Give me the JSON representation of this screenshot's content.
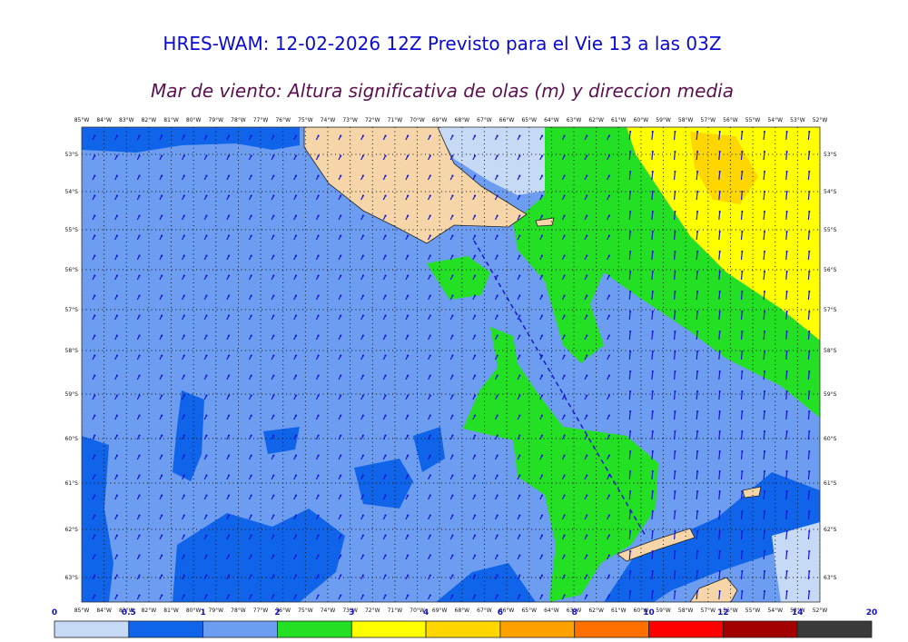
{
  "header": {
    "title": "HRES-WAM: 12-02-2026 12Z Previsto para el Vie 13 a las 03Z",
    "subtitle": "Mar de viento: Altura significativa de olas (m) y direccion media"
  },
  "map": {
    "longitudes": [
      "85°W",
      "84°W",
      "83°W",
      "82°W",
      "81°W",
      "80°W",
      "79°W",
      "78°W",
      "77°W",
      "76°W",
      "75°W",
      "74°W",
      "73°W",
      "72°W",
      "71°W",
      "70°W",
      "69°W",
      "68°W",
      "67°W",
      "66°W",
      "65°W",
      "64°W",
      "63°W",
      "62°W",
      "61°W",
      "60°W",
      "59°W",
      "58°W",
      "57°W",
      "56°W",
      "55°W",
      "54°W",
      "53°W",
      "52°W"
    ],
    "latitudes": [
      "53°S",
      "54°S",
      "55°S",
      "56°S",
      "57°S",
      "58°S",
      "59°S",
      "60°S",
      "61°S",
      "62°S",
      "63°S"
    ]
  },
  "colorbar": {
    "labels": [
      "0",
      "0.5",
      "1",
      "2",
      "3",
      "4",
      "6",
      "8",
      "10",
      "12",
      "14",
      "20"
    ],
    "colors": [
      "#c6daf6",
      "#0f64ea",
      "#6c9df0",
      "#24e024",
      "#ffff00",
      "#ffd600",
      "#ffa200",
      "#ff7000",
      "#ff0000",
      "#a30000",
      "#3a3a3a"
    ]
  }
}
